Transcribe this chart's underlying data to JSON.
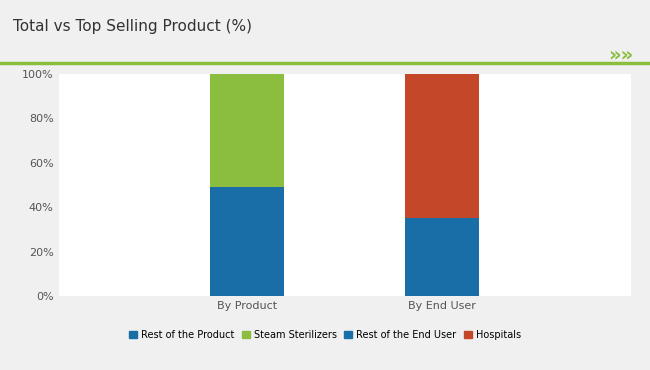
{
  "title": "Total vs Top Selling Product (%)",
  "title_fontsize": 11,
  "categories": [
    "By Product",
    "By End User"
  ],
  "segments": {
    "By Product": {
      "Rest of the Product": 49,
      "Steam Sterilizers": 51
    },
    "By End User": {
      "Rest of the End User": 35,
      "Hospitals": 65
    }
  },
  "colors": {
    "Rest of the Product": "#1A6EA8",
    "Steam Sterilizers": "#8BBD3F",
    "Rest of the End User": "#1A6EA8",
    "Hospitals": "#C4472A"
  },
  "legend_items": [
    {
      "label": "Rest of the Product",
      "color": "#1A6EA8"
    },
    {
      "label": "Steam Sterilizers",
      "color": "#8BBD3F"
    },
    {
      "label": "Rest of the End User",
      "color": "#1A6EA8"
    },
    {
      "label": "Hospitals",
      "color": "#C4472A"
    }
  ],
  "yticks": [
    0,
    20,
    40,
    60,
    80,
    100
  ],
  "ytick_labels": [
    "0%",
    "20%",
    "40%",
    "60%",
    "80%",
    "100%"
  ],
  "bar_width": 0.13,
  "bg_color": "#f0f0f0",
  "plot_bg_color": "#ffffff",
  "header_line_color": "#8BBD3F",
  "arrow_color": "#8BBD3F",
  "x_positions": [
    0.33,
    0.67
  ]
}
